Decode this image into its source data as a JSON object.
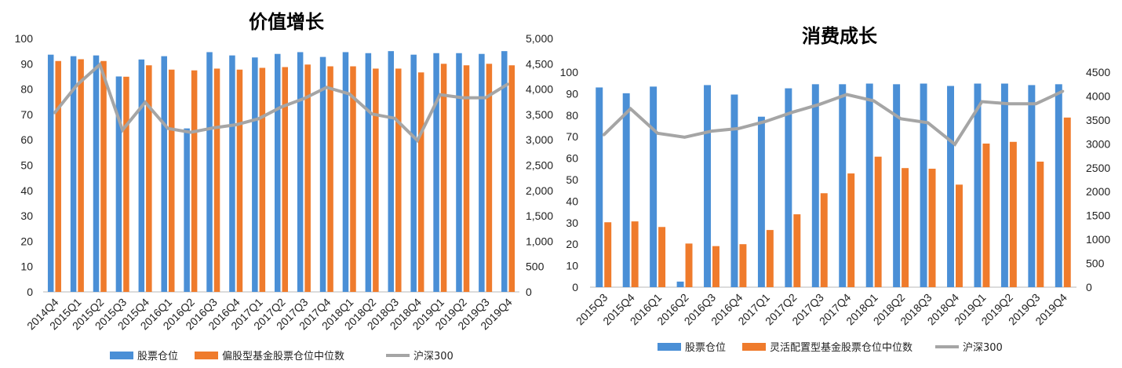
{
  "colors": {
    "stock": "#4a8fd6",
    "fund": "#ef7b2c",
    "index": "#a5a5a5"
  },
  "chart_data": [
    {
      "type": "bar",
      "title": "价值增长",
      "categories": [
        "2014Q4",
        "2015Q1",
        "2015Q2",
        "2015Q3",
        "2015Q4",
        "2016Q1",
        "2016Q2",
        "2016Q3",
        "2016Q4",
        "2017Q1",
        "2017Q2",
        "2017Q3",
        "2017Q4",
        "2018Q1",
        "2018Q2",
        "2018Q3",
        "2018Q4",
        "2019Q1",
        "2019Q2",
        "2019Q3",
        "2019Q4"
      ],
      "ylim": [
        0,
        100
      ],
      "y2lim": [
        0,
        5000
      ],
      "yticks": [
        "0",
        "10",
        "20",
        "30",
        "40",
        "50",
        "60",
        "70",
        "80",
        "90",
        "100"
      ],
      "y2ticks": [
        "0",
        "500",
        "1,000",
        "1,500",
        "2,000",
        "2,500",
        "3,000",
        "3,500",
        "4,000",
        "4,500",
        "5,000"
      ],
      "legend": "bottom",
      "series": [
        {
          "name": "股票仓位",
          "type": "bar",
          "axis": "left",
          "values": [
            93.6,
            93,
            93.3,
            85,
            91.7,
            93,
            64.5,
            94.6,
            93.3,
            92.5,
            93.9,
            94.6,
            92.7,
            94.6,
            94.2,
            95,
            93.6,
            94.2,
            94.2,
            93.9,
            95
          ]
        },
        {
          "name": "偏股型基金股票仓位中位数",
          "type": "bar",
          "axis": "left",
          "values": [
            91.1,
            91.8,
            91.1,
            84.9,
            89.4,
            87.7,
            87.4,
            88.1,
            87.7,
            88.4,
            88.7,
            89.7,
            89,
            89,
            88.1,
            88.1,
            86.6,
            90,
            89.4,
            90,
            89.4
          ]
        },
        {
          "name": "沪深300",
          "type": "line",
          "axis": "right",
          "values": [
            3530,
            4087,
            4484,
            3194,
            3741,
            3225,
            3148,
            3235,
            3297,
            3416,
            3648,
            3813,
            4035,
            3906,
            3509,
            3426,
            2988,
            3891,
            3829,
            3829,
            4103
          ]
        }
      ]
    },
    {
      "type": "bar",
      "title": "消费成长",
      "categories": [
        "2015Q3",
        "2015Q4",
        "2016Q1",
        "2016Q2",
        "2016Q3",
        "2016Q4",
        "2017Q1",
        "2017Q2",
        "2017Q3",
        "2017Q4",
        "2018Q1",
        "2018Q2",
        "2018Q3",
        "2018Q4",
        "2019Q1",
        "2019Q2",
        "2019Q3",
        "2019Q4"
      ],
      "ylim": [
        0,
        100
      ],
      "y2lim": [
        0,
        4500
      ],
      "yticks": [
        "0",
        "10",
        "20",
        "30",
        "40",
        "50",
        "60",
        "70",
        "80",
        "90",
        "100"
      ],
      "y2ticks": [
        "0",
        "500",
        "1000",
        "1500",
        "2000",
        "2500",
        "3000",
        "3500",
        "4000",
        "4500"
      ],
      "legend": "bottom",
      "series": [
        {
          "name": "股票仓位",
          "type": "bar",
          "axis": "left",
          "values": [
            92.9,
            90.2,
            93.3,
            2.6,
            94,
            89.6,
            79.3,
            92.5,
            94.4,
            94.4,
            94.7,
            94.4,
            94.7,
            93.6,
            94.7,
            94.7,
            94,
            94.4
          ]
        },
        {
          "name": "灵活配置型基金股票仓位中位数",
          "type": "bar",
          "axis": "left",
          "values": [
            30.2,
            30.6,
            28,
            20.3,
            19.1,
            20,
            26.6,
            33.9,
            43.7,
            52.9,
            60.7,
            55.4,
            55.1,
            47.7,
            66.8,
            67.6,
            58.4,
            78.9
          ]
        },
        {
          "name": "沪深300",
          "type": "line",
          "axis": "right",
          "values": [
            3184,
            3734,
            3222,
            3140,
            3266,
            3321,
            3470,
            3663,
            3828,
            4032,
            3900,
            3525,
            3442,
            2991,
            3883,
            3839,
            3839,
            4103
          ]
        }
      ]
    }
  ]
}
